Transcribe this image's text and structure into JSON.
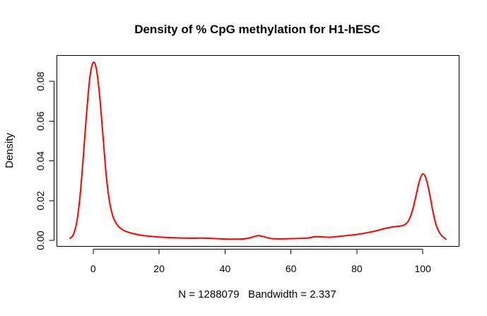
{
  "chart_data": {
    "type": "line",
    "title": "Density of % CpG methylation for H1-hESC",
    "xlabel": "N = 1288079   Bandwidth = 2.337",
    "ylabel": "Density",
    "xlim": [
      -11,
      111
    ],
    "ylim": [
      -0.003,
      0.093
    ],
    "x_ticks": [
      0,
      20,
      40,
      60,
      80,
      100
    ],
    "x_tick_labels": [
      "0",
      "20",
      "40",
      "60",
      "80",
      "100"
    ],
    "y_ticks": [
      0.0,
      0.02,
      0.04,
      0.06,
      0.08
    ],
    "y_tick_labels": [
      "0.00",
      "0.02",
      "0.04",
      "0.06",
      "0.08"
    ],
    "grid": false,
    "legend": "none",
    "series": [
      {
        "color": "#ff0000",
        "x": [
          -7,
          -6,
          -5,
          -4,
          -3,
          -2,
          -1,
          0,
          1,
          2,
          3,
          4,
          5,
          6,
          7,
          8,
          9,
          10,
          12,
          15,
          20,
          25,
          30,
          33,
          36,
          40,
          45,
          47,
          49,
          50,
          51,
          53,
          55,
          60,
          65,
          67,
          69,
          72,
          75,
          80,
          85,
          88,
          90,
          92,
          94,
          95,
          96,
          97,
          98,
          99,
          100,
          101,
          102,
          103,
          104,
          105,
          106,
          107
        ],
        "y": [
          0.001,
          0.003,
          0.009,
          0.022,
          0.042,
          0.064,
          0.082,
          0.0895,
          0.086,
          0.072,
          0.052,
          0.032,
          0.019,
          0.012,
          0.0085,
          0.0065,
          0.0053,
          0.0045,
          0.0035,
          0.0025,
          0.0017,
          0.0013,
          0.0011,
          0.0012,
          0.001,
          0.0007,
          0.0007,
          0.0011,
          0.002,
          0.0024,
          0.0022,
          0.0013,
          0.0008,
          0.0009,
          0.0012,
          0.0018,
          0.0018,
          0.0016,
          0.0021,
          0.003,
          0.0045,
          0.0058,
          0.0065,
          0.007,
          0.0075,
          0.0085,
          0.011,
          0.016,
          0.023,
          0.03,
          0.0335,
          0.031,
          0.024,
          0.015,
          0.008,
          0.004,
          0.002,
          0.0006
        ]
      }
    ]
  }
}
